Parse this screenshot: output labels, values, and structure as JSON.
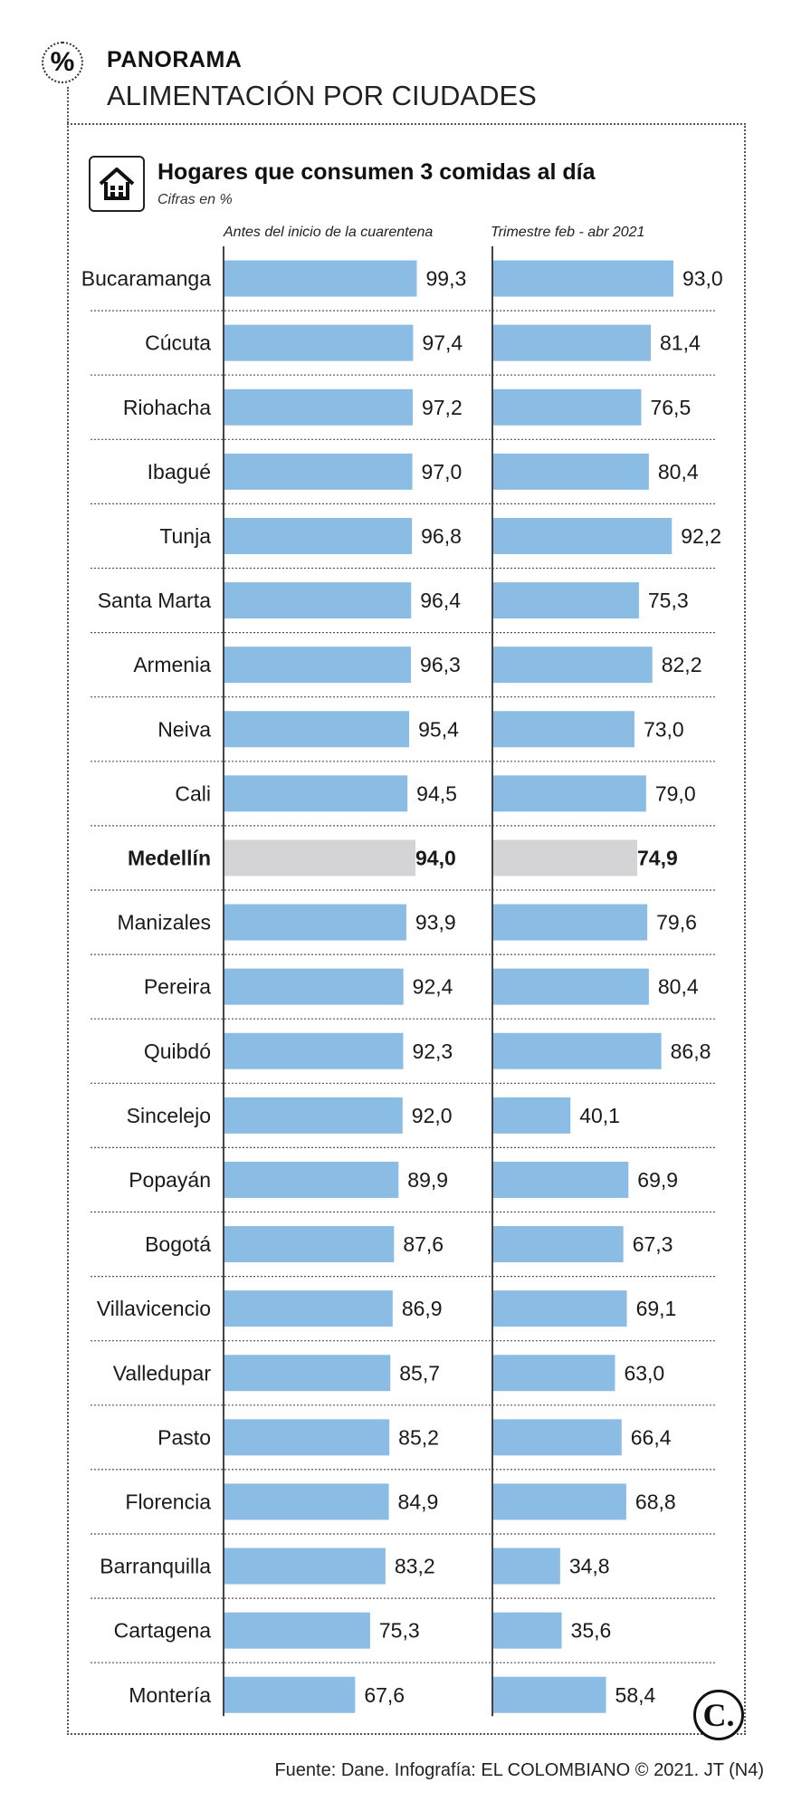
{
  "header": {
    "kicker": "PANORAMA",
    "headline": "ALIMENTACIÓN POR CIUDADES",
    "section_icon": "percent-icon"
  },
  "chart_title": "Hogares que consumen 3 comidas al día",
  "chart_subtitle": "Cifras en %",
  "footer": {
    "source": "Fuente: Dane. Infografía: EL COLOMBIANO © 2021. JT (N4)",
    "logo_text": "C."
  },
  "colors": {
    "bar": "#8bbde4",
    "highlight": "#d4d4d6",
    "axis": "#444444"
  },
  "chart_data": {
    "type": "bar",
    "orientation": "horizontal",
    "title": "Hogares que consumen 3 comidas al día",
    "subtitle": "Cifras en %",
    "unit": "%",
    "highlight_category": "Medellín",
    "categories": [
      "Bucaramanga",
      "Cúcuta",
      "Riohacha",
      "Ibagué",
      "Tunja",
      "Santa Marta",
      "Armenia",
      "Neiva",
      "Cali",
      "Medellín",
      "Manizales",
      "Pereira",
      "Quibdó",
      "Sincelejo",
      "Popayán",
      "Bogotá",
      "Villavicencio",
      "Valledupar",
      "Pasto",
      "Florencia",
      "Barranquilla",
      "Cartagena",
      "Montería"
    ],
    "series": [
      {
        "name": "Antes del inicio de la cuarentena",
        "values": [
          99.3,
          97.4,
          97.2,
          97.0,
          96.8,
          96.4,
          96.3,
          95.4,
          94.5,
          94.0,
          93.9,
          92.4,
          92.3,
          92.0,
          89.9,
          87.6,
          86.9,
          85.7,
          85.2,
          84.9,
          83.2,
          75.3,
          67.6
        ],
        "labels": [
          "99,3",
          "97,4",
          "97,2",
          "97,0",
          "96,8",
          "96,4",
          "96,3",
          "95,4",
          "94,5",
          "94,0",
          "93,9",
          "92,4",
          "92,3",
          "92,0",
          "89,9",
          "87,6",
          "86,9",
          "85,7",
          "85,2",
          "84,9",
          "83,2",
          "75,3",
          "67,6"
        ]
      },
      {
        "name": "Trimestre feb - abr 2021",
        "values": [
          93.0,
          81.4,
          76.5,
          80.4,
          92.2,
          75.3,
          82.2,
          73.0,
          79.0,
          74.9,
          79.6,
          80.4,
          86.8,
          40.1,
          69.9,
          67.3,
          69.1,
          63.0,
          66.4,
          68.8,
          34.8,
          35.6,
          58.4
        ],
        "labels": [
          "93,0",
          "81,4",
          "76,5",
          "80,4",
          "92,2",
          "75,3",
          "82,2",
          "73,0",
          "79,0",
          "74,9",
          "79,6",
          "80,4",
          "86,8",
          "40,1",
          "69,9",
          "67,3",
          "69,1",
          "63,0",
          "66,4",
          "68,8",
          "34,8",
          "35,6",
          "58,4"
        ]
      }
    ],
    "xlim": [
      0,
      100
    ]
  }
}
